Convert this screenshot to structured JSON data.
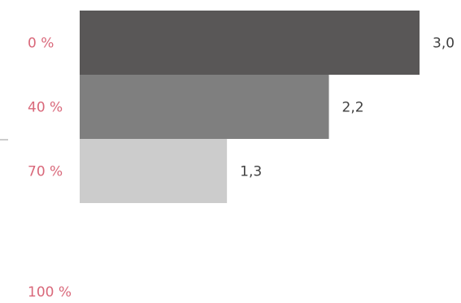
{
  "chart_data": {
    "type": "bar",
    "orientation": "horizontal",
    "categories": [
      "0 %",
      "40 %",
      "70 %",
      "100 %"
    ],
    "values": [
      3.0,
      2.2,
      1.3,
      null
    ],
    "data_labels": [
      "3,0",
      "2,2",
      "1,3",
      ""
    ],
    "bar_colors": [
      "#595757",
      "#7f7f7f",
      "#cccccc",
      "#cccccc"
    ],
    "label_color": "#d9687a",
    "data_label_color": "#404040",
    "xlim": [
      0,
      3.0
    ],
    "grid": false,
    "legend": "none"
  }
}
